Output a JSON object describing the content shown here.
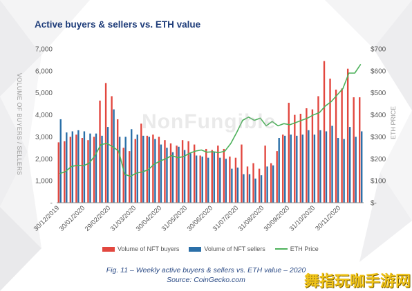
{
  "header": {
    "title": "Active buyers & sellers vs. ETH value"
  },
  "watermarks": {
    "nft": "NonFungible",
    "corner": "舞指玩咖手游网"
  },
  "colors": {
    "buyers": "#e2473f",
    "sellers": "#2a6fa8",
    "eth": "#4cb15a",
    "title": "#1f3d7a"
  },
  "legend": {
    "buyers": "Volume of NFT buyers",
    "sellers": "Volume of NFT sellers",
    "eth": "ETH Price"
  },
  "caption": {
    "line1": "Fig. 11 – Weekly active buyers & sellers vs. ETH value – 2020",
    "line2": "Source: CoinGecko.com"
  },
  "chart_data": {
    "type": "bar",
    "title": "Active buyers & sellers vs. ETH value",
    "ylabel": "VOLUME OF BUYERS / SELLERS",
    "y2label": "ETH PRICE",
    "ylim": [
      0,
      7000
    ],
    "y2lim": [
      0,
      700
    ],
    "yticks": [
      "-",
      "1,000",
      "2,000",
      "3,000",
      "4,000",
      "5,000",
      "6,000",
      "7,000"
    ],
    "y2ticks": [
      "$-",
      "$100",
      "$200",
      "$300",
      "$400",
      "$500",
      "$600",
      "$700"
    ],
    "grid": false,
    "legend_position": "bottom",
    "xtick_labels": [
      "30/12/2019",
      "30/01/2020",
      "29/02/2020",
      "31/03/2020",
      "30/04/2020",
      "31/05/2020",
      "30/06/2020",
      "31/07/2020",
      "31/08/2020",
      "30/09/2020",
      "31/10/2020",
      "30/11/2020"
    ],
    "x": [
      "30/12/2019",
      "06/01/2020",
      "13/01/2020",
      "20/01/2020",
      "27/01/2020",
      "03/02/2020",
      "10/02/2020",
      "17/02/2020",
      "24/02/2020",
      "02/03/2020",
      "09/03/2020",
      "16/03/2020",
      "23/03/2020",
      "30/03/2020",
      "06/04/2020",
      "13/04/2020",
      "20/04/2020",
      "27/04/2020",
      "04/05/2020",
      "11/05/2020",
      "18/05/2020",
      "25/05/2020",
      "01/06/2020",
      "08/06/2020",
      "15/06/2020",
      "22/06/2020",
      "29/06/2020",
      "06/07/2020",
      "13/07/2020",
      "20/07/2020",
      "27/07/2020",
      "03/08/2020",
      "10/08/2020",
      "17/08/2020",
      "24/08/2020",
      "31/08/2020",
      "07/09/2020",
      "14/09/2020",
      "21/09/2020",
      "28/09/2020",
      "05/10/2020",
      "12/10/2020",
      "19/10/2020",
      "26/10/2020",
      "02/11/2020",
      "09/11/2020",
      "16/11/2020",
      "23/11/2020",
      "30/11/2020",
      "07/12/2020",
      "14/12/2020",
      "21/12/2020"
    ],
    "series": [
      {
        "name": "Volume of NFT buyers",
        "values": [
          2750,
          2800,
          3000,
          3100,
          2950,
          2850,
          3000,
          4650,
          5450,
          4850,
          3800,
          2500,
          2350,
          2900,
          3600,
          3050,
          3100,
          3000,
          2850,
          2700,
          2600,
          2850,
          2800,
          2650,
          2150,
          2450,
          2400,
          2600,
          2450,
          2100,
          2050,
          2650,
          1650,
          1800,
          1550,
          2600,
          1800,
          2350,
          3100,
          4550,
          4000,
          4050,
          4300,
          4250,
          4850,
          6450,
          5650,
          5150,
          5200,
          6100,
          4800,
          4800
        ]
      },
      {
        "name": "Volume of NFT sellers",
        "values": [
          3800,
          3200,
          3250,
          3300,
          3250,
          3150,
          3150,
          3050,
          3450,
          4250,
          3000,
          3000,
          3350,
          3100,
          3050,
          3000,
          2900,
          2650,
          2500,
          2300,
          2550,
          2400,
          2250,
          2150,
          2100,
          2050,
          2300,
          2050,
          2000,
          1550,
          1600,
          1300,
          1300,
          1100,
          1250,
          1650,
          1700,
          2950,
          3050,
          3100,
          3050,
          3100,
          3300,
          3100,
          3300,
          3250,
          3500,
          2950,
          2900,
          3450,
          3000,
          3250
        ]
      },
      {
        "name": "ETH Price",
        "values": [
          132,
          142,
          165,
          170,
          168,
          180,
          215,
          265,
          270,
          255,
          235,
          130,
          120,
          135,
          140,
          150,
          175,
          190,
          200,
          215,
          205,
          210,
          225,
          235,
          240,
          230,
          232,
          228,
          235,
          270,
          320,
          375,
          390,
          375,
          385,
          350,
          370,
          350,
          360,
          355,
          365,
          375,
          385,
          400,
          410,
          440,
          460,
          490,
          520,
          590,
          590,
          630
        ]
      }
    ]
  }
}
